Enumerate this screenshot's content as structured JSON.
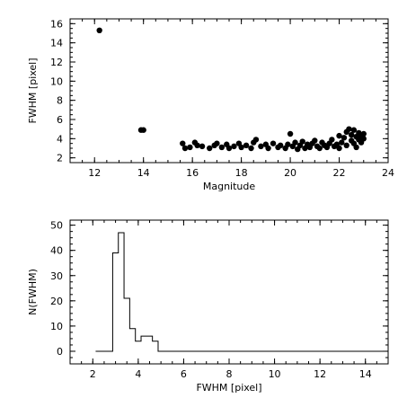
{
  "chart_data": [
    {
      "type": "scatter",
      "title": "",
      "xlabel": "Magnitude",
      "ylabel": "FWHM [pixel]",
      "xlim": [
        11,
        24
      ],
      "ylim": [
        1.5,
        16.5
      ],
      "xticks": [
        12,
        14,
        16,
        18,
        20,
        22,
        24
      ],
      "yticks": [
        2,
        4,
        6,
        8,
        10,
        12,
        14,
        16
      ],
      "grid": false,
      "points": [
        [
          12.2,
          15.3
        ],
        [
          13.9,
          4.9
        ],
        [
          14.0,
          4.9
        ],
        [
          15.6,
          3.5
        ],
        [
          15.7,
          3.0
        ],
        [
          15.9,
          3.1
        ],
        [
          16.1,
          3.6
        ],
        [
          16.2,
          3.3
        ],
        [
          16.4,
          3.2
        ],
        [
          16.7,
          3.0
        ],
        [
          16.9,
          3.3
        ],
        [
          17.0,
          3.5
        ],
        [
          17.2,
          3.1
        ],
        [
          17.4,
          3.4
        ],
        [
          17.5,
          3.0
        ],
        [
          17.7,
          3.2
        ],
        [
          17.9,
          3.5
        ],
        [
          18.0,
          3.1
        ],
        [
          18.2,
          3.3
        ],
        [
          18.4,
          3.0
        ],
        [
          18.5,
          3.6
        ],
        [
          18.6,
          3.9
        ],
        [
          18.8,
          3.2
        ],
        [
          19.0,
          3.4
        ],
        [
          19.1,
          3.0
        ],
        [
          19.3,
          3.5
        ],
        [
          19.5,
          3.1
        ],
        [
          19.6,
          3.3
        ],
        [
          19.8,
          3.0
        ],
        [
          19.9,
          3.4
        ],
        [
          20.0,
          4.5
        ],
        [
          20.1,
          3.2
        ],
        [
          20.2,
          3.6
        ],
        [
          20.3,
          2.9
        ],
        [
          20.4,
          3.3
        ],
        [
          20.5,
          3.7
        ],
        [
          20.6,
          3.0
        ],
        [
          20.7,
          3.4
        ],
        [
          20.8,
          3.1
        ],
        [
          20.9,
          3.5
        ],
        [
          21.0,
          3.8
        ],
        [
          21.1,
          3.2
        ],
        [
          21.2,
          3.0
        ],
        [
          21.3,
          3.6
        ],
        [
          21.4,
          3.3
        ],
        [
          21.5,
          3.1
        ],
        [
          21.6,
          3.5
        ],
        [
          21.7,
          3.9
        ],
        [
          21.8,
          3.2
        ],
        [
          21.9,
          3.4
        ],
        [
          22.0,
          4.3
        ],
        [
          22.0,
          3.0
        ],
        [
          22.1,
          3.6
        ],
        [
          22.2,
          4.1
        ],
        [
          22.3,
          3.3
        ],
        [
          22.3,
          4.7
        ],
        [
          22.4,
          5.0
        ],
        [
          22.5,
          3.8
        ],
        [
          22.5,
          4.4
        ],
        [
          22.6,
          3.5
        ],
        [
          22.6,
          4.9
        ],
        [
          22.7,
          4.2
        ],
        [
          22.7,
          3.1
        ],
        [
          22.8,
          4.6
        ],
        [
          22.8,
          3.9
        ],
        [
          22.9,
          4.3
        ],
        [
          22.9,
          3.6
        ],
        [
          23.0,
          4.0
        ],
        [
          23.0,
          4.5
        ]
      ]
    },
    {
      "type": "histogram",
      "title": "",
      "xlabel": "FWHM [pixel]",
      "ylabel": "N(FWHM)",
      "xlim": [
        1,
        15
      ],
      "ylim": [
        -5,
        52
      ],
      "xticks": [
        2,
        4,
        6,
        8,
        10,
        12,
        14
      ],
      "yticks": [
        0,
        10,
        20,
        30,
        40,
        50
      ],
      "grid": false,
      "bin_width": 0.25,
      "bins": [
        [
          2.25,
          0
        ],
        [
          2.5,
          0
        ],
        [
          2.75,
          0
        ],
        [
          3.0,
          39
        ],
        [
          3.25,
          47
        ],
        [
          3.5,
          21
        ],
        [
          3.75,
          9
        ],
        [
          4.0,
          4
        ],
        [
          4.25,
          6
        ],
        [
          4.5,
          6
        ],
        [
          4.75,
          4
        ],
        [
          5.0,
          0
        ],
        [
          5.25,
          0
        ]
      ],
      "baseline_extends_to": 15
    }
  ]
}
